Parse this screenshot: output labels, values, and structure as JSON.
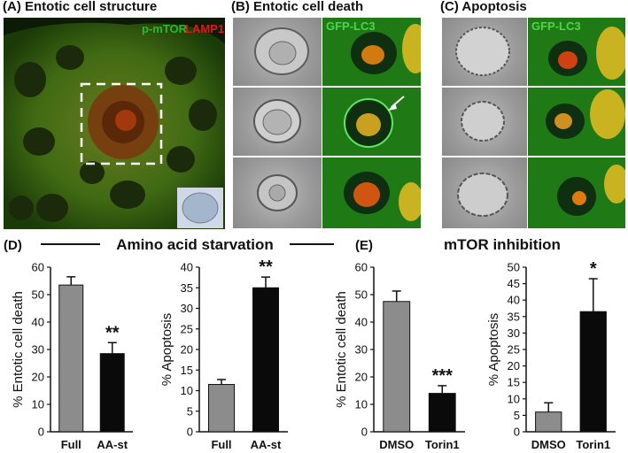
{
  "panels": {
    "A": {
      "title": "(A)  Entotic cell structure",
      "label_green": "p-mTOR",
      "label_red": "LAMP1"
    },
    "B": {
      "title": "(B)  Entotic cell death",
      "label": "GFP-LC3"
    },
    "C": {
      "title": "(C)  Apoptosis",
      "label": "GFP-LC3"
    },
    "D": {
      "title": "(D)",
      "group": "Amino acid starvation"
    },
    "E": {
      "title": "(E)",
      "group": "mTOR inhibition"
    }
  },
  "colors": {
    "full": "#8c8c8c",
    "treated": "#0a0a0a",
    "green": "#2fb82a",
    "red": "#e01919"
  },
  "chart_data": [
    {
      "type": "bar",
      "categories": [
        "Full",
        "AA-st"
      ],
      "values": [
        53.5,
        28.5
      ],
      "errors": [
        3,
        4
      ],
      "ylabel": "% Entotic cell death",
      "ylim": [
        0,
        60
      ],
      "yticks": [
        0,
        10,
        20,
        30,
        40,
        50,
        60
      ],
      "significance": [
        "",
        "**"
      ]
    },
    {
      "type": "bar",
      "categories": [
        "Full",
        "AA-st"
      ],
      "values": [
        11.5,
        35
      ],
      "errors": [
        1.2,
        2.6
      ],
      "ylabel": "% Apoptosis",
      "ylim": [
        0,
        40
      ],
      "yticks": [
        0,
        5,
        10,
        15,
        20,
        25,
        30,
        35,
        40
      ],
      "significance": [
        "",
        "**"
      ]
    },
    {
      "type": "bar",
      "categories": [
        "DMSO",
        "Torin1"
      ],
      "values": [
        47.5,
        14
      ],
      "errors": [
        3.8,
        2.8
      ],
      "ylabel": "% Entotic cell death",
      "ylim": [
        0,
        60
      ],
      "yticks": [
        0,
        10,
        20,
        30,
        40,
        50,
        60
      ],
      "significance": [
        "",
        "***"
      ]
    },
    {
      "type": "bar",
      "categories": [
        "DMSO",
        "Torin1"
      ],
      "values": [
        6,
        36.5
      ],
      "errors": [
        2.8,
        10
      ],
      "ylabel": "% Apoptosis",
      "ylim": [
        0,
        50
      ],
      "yticks": [
        0,
        5,
        10,
        15,
        20,
        25,
        30,
        35,
        40,
        45,
        50
      ],
      "significance": [
        "",
        "*"
      ]
    }
  ]
}
